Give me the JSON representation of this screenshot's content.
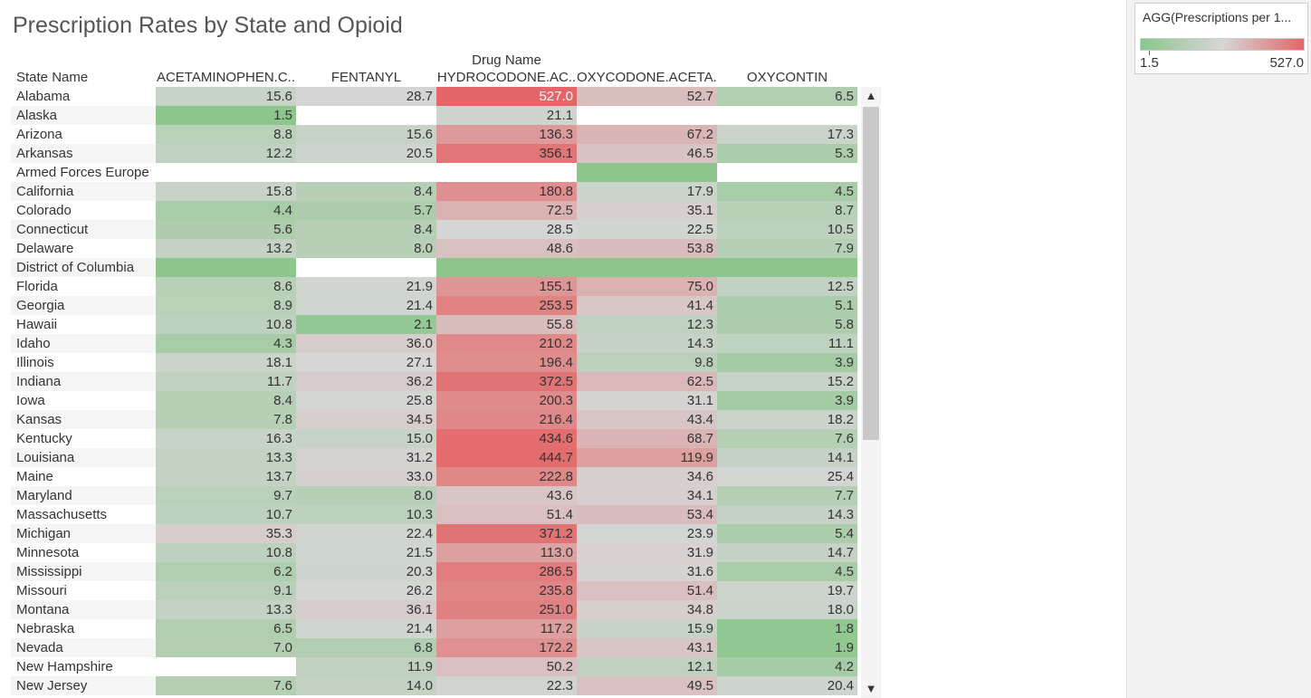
{
  "title": "Prescription Rates by State and Opioid",
  "header": {
    "column_group_label": "Drug Name",
    "row_label": "State Name"
  },
  "legend": {
    "title": "AGG(Prescriptions per 1...",
    "min_label": "1.5",
    "max_label": "527.0",
    "colors": [
      "#8cc68c",
      "#d6d6d6",
      "#e46668"
    ]
  },
  "scrollbar": {
    "up_icon": "▲",
    "down_icon": "▼"
  },
  "chart_data": {
    "type": "heatmap",
    "title": "Prescription Rates by State and Opioid",
    "xlabel": "Drug Name",
    "ylabel": "State Name",
    "columns": [
      "ACETAMINOPHEN.C..",
      "FENTANYL",
      "HYDROCODONE.AC..",
      "OXYCODONE.ACETA..",
      "OXYCONTIN"
    ],
    "color_scale": {
      "min": 1.5,
      "max": 527.0,
      "colors": [
        "#8cc68c",
        "#d6d6d6",
        "#e46668"
      ]
    },
    "rows": [
      {
        "state": "Alabama",
        "values": [
          "15.6",
          "28.7",
          "527.0",
          "52.7",
          "6.5"
        ]
      },
      {
        "state": "Alaska",
        "values": [
          "1.5",
          "",
          "21.1",
          "",
          ""
        ]
      },
      {
        "state": "Arizona",
        "values": [
          "8.8",
          "15.6",
          "136.3",
          "67.2",
          "17.3"
        ]
      },
      {
        "state": "Arkansas",
        "values": [
          "12.2",
          "20.5",
          "356.1",
          "46.5",
          "5.3"
        ]
      },
      {
        "state": "Armed Forces Europe",
        "values": [
          "",
          "",
          "",
          "@",
          ""
        ]
      },
      {
        "state": "California",
        "values": [
          "15.8",
          "8.4",
          "180.8",
          "17.9",
          "4.5"
        ]
      },
      {
        "state": "Colorado",
        "values": [
          "4.4",
          "5.7",
          "72.5",
          "35.1",
          "8.7"
        ]
      },
      {
        "state": "Connecticut",
        "values": [
          "5.6",
          "8.4",
          "28.5",
          "22.5",
          "10.5"
        ]
      },
      {
        "state": "Delaware",
        "values": [
          "13.2",
          "8.0",
          "48.6",
          "53.8",
          "7.9"
        ]
      },
      {
        "state": "District of Columbia",
        "values": [
          "@",
          "",
          "@",
          "@",
          "@"
        ]
      },
      {
        "state": "Florida",
        "values": [
          "8.6",
          "21.9",
          "155.1",
          "75.0",
          "12.5"
        ]
      },
      {
        "state": "Georgia",
        "values": [
          "8.9",
          "21.4",
          "253.5",
          "41.4",
          "5.1"
        ]
      },
      {
        "state": "Hawaii",
        "values": [
          "10.8",
          "2.1",
          "55.8",
          "12.3",
          "5.8"
        ]
      },
      {
        "state": "Idaho",
        "values": [
          "4.3",
          "36.0",
          "210.2",
          "14.3",
          "11.1"
        ]
      },
      {
        "state": "Illinois",
        "values": [
          "18.1",
          "27.1",
          "196.4",
          "9.8",
          "3.9"
        ]
      },
      {
        "state": "Indiana",
        "values": [
          "11.7",
          "36.2",
          "372.5",
          "62.5",
          "15.2"
        ]
      },
      {
        "state": "Iowa",
        "values": [
          "8.4",
          "25.8",
          "200.3",
          "31.1",
          "3.9"
        ]
      },
      {
        "state": "Kansas",
        "values": [
          "7.8",
          "34.5",
          "216.4",
          "43.4",
          "18.2"
        ]
      },
      {
        "state": "Kentucky",
        "values": [
          "16.3",
          "15.0",
          "434.6",
          "68.7",
          "7.6"
        ]
      },
      {
        "state": "Louisiana",
        "values": [
          "13.3",
          "31.2",
          "444.7",
          "119.9",
          "14.1"
        ]
      },
      {
        "state": "Maine",
        "values": [
          "13.7",
          "33.0",
          "222.8",
          "34.6",
          "25.4"
        ]
      },
      {
        "state": "Maryland",
        "values": [
          "9.7",
          "8.0",
          "43.6",
          "34.1",
          "7.7"
        ]
      },
      {
        "state": "Massachusetts",
        "values": [
          "10.7",
          "10.3",
          "51.4",
          "53.4",
          "14.3"
        ]
      },
      {
        "state": "Michigan",
        "values": [
          "35.3",
          "22.4",
          "371.2",
          "23.9",
          "5.4"
        ]
      },
      {
        "state": "Minnesota",
        "values": [
          "10.8",
          "21.5",
          "113.0",
          "31.9",
          "14.7"
        ]
      },
      {
        "state": "Mississippi",
        "values": [
          "6.2",
          "20.3",
          "286.5",
          "31.6",
          "4.5"
        ]
      },
      {
        "state": "Missouri",
        "values": [
          "9.1",
          "26.2",
          "235.8",
          "51.4",
          "19.7"
        ]
      },
      {
        "state": "Montana",
        "values": [
          "13.3",
          "36.1",
          "251.0",
          "34.8",
          "18.0"
        ]
      },
      {
        "state": "Nebraska",
        "values": [
          "6.5",
          "21.4",
          "117.2",
          "15.9",
          "1.8"
        ]
      },
      {
        "state": "Nevada",
        "values": [
          "7.0",
          "6.8",
          "172.2",
          "43.1",
          "1.9"
        ]
      },
      {
        "state": "New Hampshire",
        "values": [
          "",
          "11.9",
          "50.2",
          "12.1",
          "4.2"
        ]
      },
      {
        "state": "New Jersey",
        "values": [
          "7.6",
          "14.0",
          "22.3",
          "49.5",
          "20.4"
        ]
      }
    ]
  }
}
